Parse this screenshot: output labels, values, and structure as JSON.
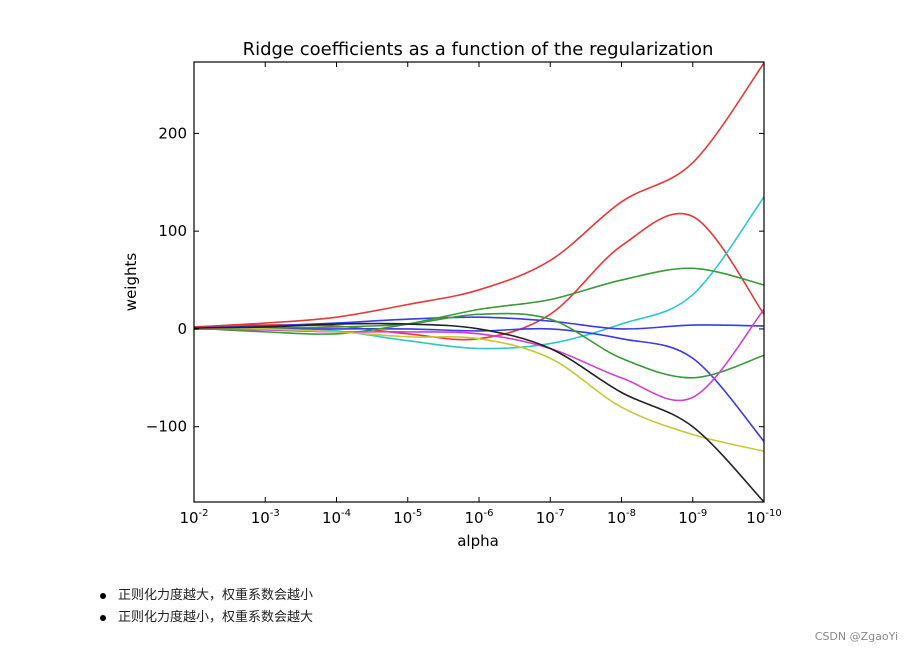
{
  "chart_data": {
    "type": "line",
    "title": "Ridge coefficients as a function of the regularization",
    "xlabel": "alpha",
    "ylabel": "weights",
    "x_scale": "log-reversed",
    "x_ticks": [
      {
        "base": "10",
        "exp": "-2"
      },
      {
        "base": "10",
        "exp": "-3"
      },
      {
        "base": "10",
        "exp": "-4"
      },
      {
        "base": "10",
        "exp": "-5"
      },
      {
        "base": "10",
        "exp": "-6"
      },
      {
        "base": "10",
        "exp": "-7"
      },
      {
        "base": "10",
        "exp": "-8"
      },
      {
        "base": "10",
        "exp": "-9"
      },
      {
        "base": "10",
        "exp": "-10"
      }
    ],
    "y_ticks": [
      "200",
      "100",
      "0",
      "−100"
    ],
    "y_tick_values": [
      200,
      100,
      0,
      -100
    ],
    "ylim": [
      -177,
      273
    ],
    "xlim_log10_alpha": [
      -2,
      -10
    ],
    "x": [
      -2,
      -3,
      -4,
      -5,
      -6,
      -7,
      -8,
      -9,
      -10
    ],
    "series": [
      {
        "color": "#e63a3a",
        "values": [
          2,
          6,
          12,
          25,
          40,
          70,
          130,
          170,
          272
        ]
      },
      {
        "color": "#e63a3a",
        "values": [
          2,
          4,
          3,
          -5,
          -10,
          15,
          85,
          115,
          15
        ]
      },
      {
        "color": "#2ec7c9",
        "values": [
          1,
          2,
          -2,
          -12,
          -20,
          -15,
          5,
          35,
          135
        ]
      },
      {
        "color": "#3a3ae6",
        "values": [
          1,
          3,
          6,
          10,
          12,
          8,
          0,
          4,
          3
        ]
      },
      {
        "color": "#3a3ae6",
        "values": [
          0,
          0,
          0,
          0,
          -2,
          0,
          -10,
          -30,
          -115
        ]
      },
      {
        "color": "#3a9a3a",
        "values": [
          1,
          -3,
          -5,
          5,
          20,
          30,
          50,
          62,
          45
        ]
      },
      {
        "color": "#3a9a3a",
        "values": [
          1,
          1,
          2,
          5,
          15,
          10,
          -30,
          -50,
          -27
        ]
      },
      {
        "color": "#d040d0",
        "values": [
          0,
          -1,
          -3,
          -3,
          -5,
          -20,
          -50,
          -70,
          20
        ]
      },
      {
        "color": "#c8c83a",
        "values": [
          1,
          0,
          -3,
          -8,
          -10,
          -30,
          -80,
          -108,
          -125
        ]
      },
      {
        "color": "#222222",
        "values": [
          1,
          2,
          5,
          5,
          0,
          -20,
          -65,
          -100,
          -177
        ]
      }
    ]
  },
  "notes": [
    "正则化力度越大，权重系数会越小",
    "正则化力度越小，权重系数会越大"
  ],
  "watermark": "CSDN @ZgaoYi"
}
